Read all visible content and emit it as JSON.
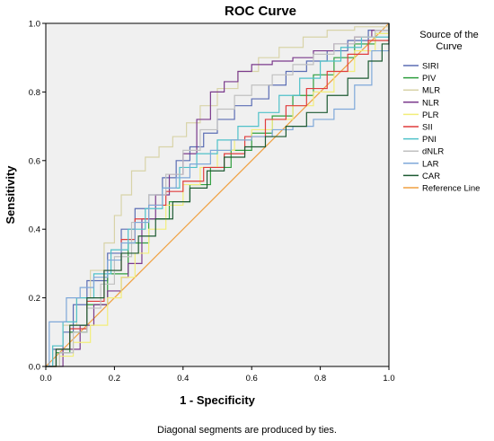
{
  "chart_data": {
    "type": "line",
    "title": "ROC Curve",
    "xlabel": "1 - Specificity",
    "ylabel": "Sensitivity",
    "xlim": [
      0,
      1
    ],
    "ylim": [
      0,
      1
    ],
    "xticks": [
      "0.0",
      "0.2",
      "0.4",
      "0.6",
      "0.8",
      "1.0"
    ],
    "yticks": [
      "0.0",
      "0.2",
      "0.4",
      "0.6",
      "0.8",
      "1.0"
    ],
    "grid": false,
    "background": "#f0f0f0",
    "legend_title": [
      "Source of the",
      "Curve"
    ],
    "legend_position": "right",
    "footnote": "Diagonal segments are produced by ties.",
    "series": [
      {
        "name": "SIRI",
        "color": "#5b6db4",
        "points": [
          [
            0,
            0
          ],
          [
            0.02,
            0.05
          ],
          [
            0.05,
            0.1
          ],
          [
            0.08,
            0.18
          ],
          [
            0.12,
            0.25
          ],
          [
            0.18,
            0.33
          ],
          [
            0.22,
            0.4
          ],
          [
            0.26,
            0.46
          ],
          [
            0.3,
            0.5
          ],
          [
            0.34,
            0.55
          ],
          [
            0.38,
            0.6
          ],
          [
            0.42,
            0.64
          ],
          [
            0.46,
            0.68
          ],
          [
            0.5,
            0.72
          ],
          [
            0.55,
            0.76
          ],
          [
            0.6,
            0.78
          ],
          [
            0.65,
            0.82
          ],
          [
            0.7,
            0.86
          ],
          [
            0.76,
            0.89
          ],
          [
            0.82,
            0.92
          ],
          [
            0.88,
            0.95
          ],
          [
            0.94,
            0.98
          ],
          [
            1,
            1
          ]
        ]
      },
      {
        "name": "PIV",
        "color": "#2e9e3e",
        "points": [
          [
            0,
            0
          ],
          [
            0.03,
            0.04
          ],
          [
            0.07,
            0.1
          ],
          [
            0.12,
            0.18
          ],
          [
            0.18,
            0.27
          ],
          [
            0.24,
            0.36
          ],
          [
            0.3,
            0.43
          ],
          [
            0.36,
            0.48
          ],
          [
            0.42,
            0.53
          ],
          [
            0.48,
            0.58
          ],
          [
            0.54,
            0.63
          ],
          [
            0.6,
            0.68
          ],
          [
            0.66,
            0.73
          ],
          [
            0.72,
            0.79
          ],
          [
            0.78,
            0.85
          ],
          [
            0.84,
            0.9
          ],
          [
            0.9,
            0.94
          ],
          [
            0.96,
            0.97
          ],
          [
            1,
            1
          ]
        ]
      },
      {
        "name": "MLR",
        "color": "#d8d3a8",
        "points": [
          [
            0,
            0
          ],
          [
            0.02,
            0.06
          ],
          [
            0.05,
            0.12
          ],
          [
            0.09,
            0.2
          ],
          [
            0.13,
            0.28
          ],
          [
            0.17,
            0.36
          ],
          [
            0.2,
            0.44
          ],
          [
            0.22,
            0.5
          ],
          [
            0.25,
            0.57
          ],
          [
            0.29,
            0.61
          ],
          [
            0.33,
            0.64
          ],
          [
            0.37,
            0.67
          ],
          [
            0.41,
            0.71
          ],
          [
            0.45,
            0.76
          ],
          [
            0.5,
            0.81
          ],
          [
            0.56,
            0.86
          ],
          [
            0.62,
            0.9
          ],
          [
            0.68,
            0.93
          ],
          [
            0.75,
            0.96
          ],
          [
            0.82,
            0.98
          ],
          [
            0.9,
            0.99
          ],
          [
            1,
            1
          ]
        ]
      },
      {
        "name": "NLR",
        "color": "#7b3a8c",
        "points": [
          [
            0,
            0
          ],
          [
            0.05,
            0.05
          ],
          [
            0.1,
            0.12
          ],
          [
            0.14,
            0.18
          ],
          [
            0.18,
            0.22
          ],
          [
            0.22,
            0.26
          ],
          [
            0.24,
            0.3
          ],
          [
            0.28,
            0.43
          ],
          [
            0.32,
            0.5
          ],
          [
            0.36,
            0.56
          ],
          [
            0.4,
            0.62
          ],
          [
            0.44,
            0.72
          ],
          [
            0.48,
            0.8
          ],
          [
            0.52,
            0.83
          ],
          [
            0.56,
            0.86
          ],
          [
            0.6,
            0.88
          ],
          [
            0.66,
            0.89
          ],
          [
            0.72,
            0.9
          ],
          [
            0.78,
            0.92
          ],
          [
            0.84,
            0.94
          ],
          [
            0.9,
            0.96
          ],
          [
            0.95,
            0.98
          ],
          [
            1,
            1
          ]
        ]
      },
      {
        "name": "PLR",
        "color": "#f2ee7a",
        "points": [
          [
            0,
            0
          ],
          [
            0.04,
            0.03
          ],
          [
            0.08,
            0.07
          ],
          [
            0.13,
            0.12
          ],
          [
            0.18,
            0.2
          ],
          [
            0.22,
            0.26
          ],
          [
            0.26,
            0.33
          ],
          [
            0.3,
            0.4
          ],
          [
            0.35,
            0.47
          ],
          [
            0.4,
            0.53
          ],
          [
            0.45,
            0.58
          ],
          [
            0.5,
            0.63
          ],
          [
            0.55,
            0.66
          ],
          [
            0.6,
            0.69
          ],
          [
            0.66,
            0.72
          ],
          [
            0.72,
            0.76
          ],
          [
            0.78,
            0.8
          ],
          [
            0.84,
            0.86
          ],
          [
            0.9,
            0.92
          ],
          [
            0.96,
            0.97
          ],
          [
            1,
            1
          ]
        ]
      },
      {
        "name": "SII",
        "color": "#e03c3c",
        "points": [
          [
            0,
            0
          ],
          [
            0.03,
            0.05
          ],
          [
            0.07,
            0.11
          ],
          [
            0.12,
            0.19
          ],
          [
            0.17,
            0.28
          ],
          [
            0.22,
            0.37
          ],
          [
            0.26,
            0.43
          ],
          [
            0.3,
            0.47
          ],
          [
            0.35,
            0.51
          ],
          [
            0.4,
            0.54
          ],
          [
            0.46,
            0.58
          ],
          [
            0.52,
            0.62
          ],
          [
            0.58,
            0.67
          ],
          [
            0.64,
            0.72
          ],
          [
            0.7,
            0.76
          ],
          [
            0.76,
            0.81
          ],
          [
            0.82,
            0.86
          ],
          [
            0.88,
            0.91
          ],
          [
            0.94,
            0.95
          ],
          [
            1,
            1
          ]
        ]
      },
      {
        "name": "PNI",
        "color": "#4fc1c9",
        "points": [
          [
            0,
            0
          ],
          [
            0.02,
            0.06
          ],
          [
            0.05,
            0.13
          ],
          [
            0.09,
            0.2
          ],
          [
            0.14,
            0.27
          ],
          [
            0.19,
            0.34
          ],
          [
            0.24,
            0.4
          ],
          [
            0.29,
            0.46
          ],
          [
            0.34,
            0.52
          ],
          [
            0.39,
            0.58
          ],
          [
            0.44,
            0.62
          ],
          [
            0.5,
            0.66
          ],
          [
            0.56,
            0.7
          ],
          [
            0.62,
            0.74
          ],
          [
            0.68,
            0.79
          ],
          [
            0.74,
            0.84
          ],
          [
            0.8,
            0.89
          ],
          [
            0.86,
            0.93
          ],
          [
            0.92,
            0.96
          ],
          [
            1,
            1
          ]
        ]
      },
      {
        "name": "dNLR",
        "color": "#c0c0c0",
        "points": [
          [
            0,
            0
          ],
          [
            0.04,
            0.04
          ],
          [
            0.08,
            0.1
          ],
          [
            0.12,
            0.17
          ],
          [
            0.16,
            0.24
          ],
          [
            0.2,
            0.32
          ],
          [
            0.25,
            0.42
          ],
          [
            0.3,
            0.5
          ],
          [
            0.35,
            0.56
          ],
          [
            0.4,
            0.63
          ],
          [
            0.45,
            0.69
          ],
          [
            0.5,
            0.75
          ],
          [
            0.55,
            0.79
          ],
          [
            0.6,
            0.82
          ],
          [
            0.66,
            0.85
          ],
          [
            0.72,
            0.88
          ],
          [
            0.78,
            0.91
          ],
          [
            0.84,
            0.94
          ],
          [
            0.9,
            0.96
          ],
          [
            0.96,
            0.98
          ],
          [
            1,
            1
          ]
        ]
      },
      {
        "name": "LAR",
        "color": "#7fa8d9",
        "points": [
          [
            0,
            0
          ],
          [
            0.01,
            0.13
          ],
          [
            0.04,
            0.13
          ],
          [
            0.06,
            0.2
          ],
          [
            0.1,
            0.23
          ],
          [
            0.14,
            0.26
          ],
          [
            0.18,
            0.31
          ],
          [
            0.22,
            0.36
          ],
          [
            0.26,
            0.42
          ],
          [
            0.3,
            0.47
          ],
          [
            0.34,
            0.52
          ],
          [
            0.38,
            0.55
          ],
          [
            0.42,
            0.59
          ],
          [
            0.48,
            0.63
          ],
          [
            0.54,
            0.66
          ],
          [
            0.6,
            0.67
          ],
          [
            0.66,
            0.69
          ],
          [
            0.72,
            0.7
          ],
          [
            0.78,
            0.72
          ],
          [
            0.84,
            0.75
          ],
          [
            0.9,
            0.82
          ],
          [
            0.95,
            0.92
          ],
          [
            1,
            1
          ]
        ]
      },
      {
        "name": "CAR",
        "color": "#1d5a32",
        "points": [
          [
            0,
            0
          ],
          [
            0.03,
            0.05
          ],
          [
            0.07,
            0.12
          ],
          [
            0.12,
            0.2
          ],
          [
            0.17,
            0.28
          ],
          [
            0.22,
            0.33
          ],
          [
            0.27,
            0.38
          ],
          [
            0.32,
            0.43
          ],
          [
            0.37,
            0.48
          ],
          [
            0.42,
            0.52
          ],
          [
            0.47,
            0.57
          ],
          [
            0.52,
            0.61
          ],
          [
            0.58,
            0.64
          ],
          [
            0.64,
            0.67
          ],
          [
            0.7,
            0.7
          ],
          [
            0.76,
            0.74
          ],
          [
            0.82,
            0.79
          ],
          [
            0.88,
            0.84
          ],
          [
            0.94,
            0.89
          ],
          [
            0.98,
            0.94
          ],
          [
            1,
            1
          ]
        ]
      },
      {
        "name": "Reference Line",
        "color": "#f0a040",
        "points": [
          [
            0,
            0
          ],
          [
            1,
            1
          ]
        ]
      }
    ]
  }
}
